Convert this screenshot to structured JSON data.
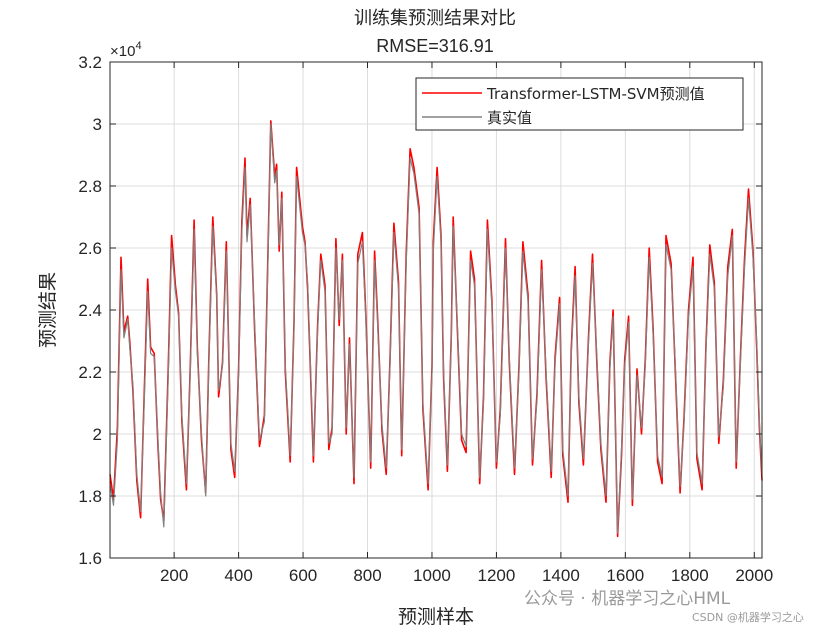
{
  "chart_data": {
    "type": "line",
    "title": "训练集预测结果对比",
    "subtitle": "RMSE=316.91",
    "xlabel": "预测样本",
    "ylabel": "预测结果",
    "y_exponent_label": "×10",
    "y_exponent_power": "4",
    "xlim": [
      1,
      2024
    ],
    "ylim": [
      16000,
      32000
    ],
    "x_ticks": [
      200,
      400,
      600,
      800,
      1000,
      1200,
      1400,
      1600,
      1800,
      2000
    ],
    "y_ticks": [
      16000,
      18000,
      20000,
      22000,
      24000,
      26000,
      28000,
      30000,
      32000
    ],
    "y_tick_labels": [
      "1.6",
      "1.8",
      "2",
      "2.2",
      "2.4",
      "2.6",
      "2.8",
      "3",
      "3.2"
    ],
    "grid": true,
    "legend_position": "top-right",
    "series": [
      {
        "name": "Transformer-LSTM-SVM预测值",
        "color": "#ff0000",
        "x": [
          1,
          12,
          24,
          35,
          44,
          56,
          62,
          72,
          84,
          96,
          108,
          118,
          127,
          138,
          150,
          158,
          168,
          182,
          192,
          204,
          214,
          224,
          238,
          250,
          262,
          272,
          285,
          298,
          308,
          320,
          332,
          338,
          350,
          362,
          376,
          388,
          400,
          410,
          420,
          426,
          436,
          450,
          465,
          480,
          492,
          500,
          512,
          518,
          526,
          534,
          545,
          560,
          572,
          580,
          598,
          606,
          614,
          622,
          632,
          645,
          655,
          668,
          680,
          690,
          702,
          712,
          722,
          734,
          744,
          758,
          770,
          784,
          795,
          810,
          822,
          832,
          845,
          858,
          870,
          882,
          896,
          906,
          920,
          932,
          944,
          960,
          972,
          988,
          1000,
          1004,
          1016,
          1028,
          1036,
          1048,
          1060,
          1066,
          1080,
          1092,
          1106,
          1120,
          1132,
          1148,
          1160,
          1172,
          1186,
          1200,
          1212,
          1228,
          1240,
          1256,
          1270,
          1282,
          1298,
          1312,
          1326,
          1340,
          1354,
          1370,
          1382,
          1396,
          1406,
          1422,
          1432,
          1444,
          1456,
          1470,
          1486,
          1498,
          1512,
          1524,
          1540,
          1552,
          1562,
          1576,
          1588,
          1598,
          1610,
          1622,
          1636,
          1650,
          1662,
          1674,
          1686,
          1700,
          1714,
          1726,
          1742,
          1756,
          1770,
          1782,
          1796,
          1810,
          1822,
          1838,
          1850,
          1862,
          1876,
          1890,
          1904,
          1918,
          1932,
          1944,
          1958,
          1970,
          1982,
          1996,
          2008,
          2016,
          2024
        ],
        "y": [
          18700,
          17900,
          20200,
          25700,
          23300,
          23800,
          23000,
          21400,
          18500,
          17300,
          21600,
          25000,
          22800,
          22600,
          19600,
          17900,
          17200,
          22200,
          26400,
          24800,
          23900,
          20400,
          18200,
          22200,
          26900,
          22800,
          19800,
          18100,
          22500,
          27000,
          24500,
          21200,
          22300,
          26200,
          19500,
          18600,
          22100,
          26800,
          28900,
          26400,
          27600,
          23300,
          19600,
          20600,
          26200,
          30100,
          28300,
          28700,
          25900,
          27800,
          22000,
          19100,
          23600,
          28600,
          26700,
          26200,
          24700,
          22400,
          19100,
          23500,
          25800,
          24800,
          19500,
          20200,
          26300,
          23500,
          25800,
          20000,
          23100,
          18400,
          25800,
          26500,
          23800,
          18900,
          25900,
          23600,
          20100,
          18700,
          22500,
          26800,
          24900,
          19300,
          25800,
          29200,
          28600,
          27300,
          20800,
          18200,
          22200,
          26200,
          28600,
          26400,
          21800,
          18800,
          23200,
          27000,
          23000,
          19800,
          19400,
          25900,
          25000,
          18400,
          21200,
          26900,
          24300,
          18900,
          20800,
          26300,
          22300,
          18700,
          22200,
          26200,
          24500,
          19000,
          21300,
          25600,
          21800,
          18600,
          22500,
          24400,
          19300,
          17800,
          22700,
          25400,
          21000,
          19000,
          23200,
          25800,
          22200,
          19500,
          17800,
          22300,
          24000,
          16700,
          19300,
          22400,
          23800,
          17700,
          22100,
          20000,
          22400,
          26000,
          23400,
          19100,
          18400,
          26400,
          25500,
          21800,
          18100,
          20500,
          24000,
          25700,
          19200,
          18200,
          22800,
          26100,
          24900,
          19700,
          21700,
          25400,
          26600,
          18900,
          22700,
          25700,
          27900,
          25900,
          22700,
          20200,
          18500
        ]
      },
      {
        "name": "真实值",
        "color": "#808080",
        "x": [
          1,
          12,
          24,
          35,
          44,
          56,
          62,
          72,
          84,
          96,
          108,
          118,
          127,
          138,
          150,
          158,
          168,
          182,
          192,
          204,
          214,
          224,
          238,
          250,
          262,
          272,
          285,
          298,
          308,
          320,
          332,
          338,
          350,
          362,
          376,
          388,
          400,
          410,
          420,
          426,
          436,
          450,
          465,
          480,
          492,
          500,
          512,
          518,
          526,
          534,
          545,
          560,
          572,
          580,
          598,
          606,
          614,
          622,
          632,
          645,
          655,
          668,
          680,
          690,
          702,
          712,
          722,
          734,
          744,
          758,
          770,
          784,
          795,
          810,
          822,
          832,
          845,
          858,
          870,
          882,
          896,
          906,
          920,
          932,
          944,
          960,
          972,
          988,
          1000,
          1004,
          1016,
          1028,
          1036,
          1048,
          1060,
          1066,
          1080,
          1092,
          1106,
          1120,
          1132,
          1148,
          1160,
          1172,
          1186,
          1200,
          1212,
          1228,
          1240,
          1256,
          1270,
          1282,
          1298,
          1312,
          1326,
          1340,
          1354,
          1370,
          1382,
          1396,
          1406,
          1422,
          1432,
          1444,
          1456,
          1470,
          1486,
          1498,
          1512,
          1524,
          1540,
          1552,
          1562,
          1576,
          1588,
          1598,
          1610,
          1622,
          1636,
          1650,
          1662,
          1674,
          1686,
          1700,
          1714,
          1726,
          1742,
          1756,
          1770,
          1782,
          1796,
          1810,
          1822,
          1838,
          1850,
          1862,
          1876,
          1890,
          1904,
          1918,
          1932,
          1944,
          1958,
          1970,
          1982,
          1996,
          2008,
          2016,
          2024
        ],
        "y": [
          18400,
          17700,
          19800,
          25300,
          23100,
          23700,
          22800,
          21600,
          18700,
          17500,
          21300,
          24600,
          22600,
          22500,
          19800,
          18100,
          17000,
          21900,
          26000,
          24600,
          23800,
          20600,
          18400,
          22000,
          26600,
          22600,
          20000,
          18000,
          22300,
          26700,
          24400,
          21400,
          22200,
          25900,
          19700,
          18800,
          21900,
          26500,
          28600,
          26200,
          27400,
          23500,
          19800,
          20400,
          25900,
          30000,
          28100,
          28500,
          26100,
          27600,
          22200,
          19300,
          23400,
          28300,
          26500,
          26100,
          24900,
          22600,
          19300,
          23300,
          25600,
          24600,
          19700,
          20000,
          26000,
          23700,
          25600,
          20200,
          22900,
          18600,
          25500,
          26200,
          23600,
          19100,
          25600,
          23400,
          20300,
          18900,
          22300,
          26500,
          24700,
          19500,
          25500,
          28900,
          28400,
          27100,
          21000,
          18400,
          22000,
          25900,
          28300,
          26200,
          22000,
          19000,
          23000,
          26700,
          23200,
          20000,
          19600,
          25600,
          24800,
          18600,
          21000,
          26600,
          24100,
          19100,
          20600,
          26000,
          22500,
          18900,
          22000,
          25900,
          24300,
          19200,
          21100,
          25300,
          22000,
          18800,
          22300,
          24200,
          19500,
          18000,
          22500,
          25100,
          21200,
          19200,
          23000,
          25500,
          22400,
          19700,
          18000,
          22100,
          23800,
          16800,
          19500,
          22200,
          23600,
          17900,
          21900,
          20200,
          22200,
          25700,
          23200,
          19300,
          18600,
          26100,
          25300,
          22000,
          18300,
          20300,
          23800,
          25400,
          19400,
          18400,
          22600,
          25800,
          24700,
          19900,
          21500,
          25100,
          26400,
          19100,
          22500,
          25400,
          27600,
          25700,
          22900,
          20400,
          18700
        ]
      }
    ]
  },
  "watermark": {
    "line1": "公众号 · 机器学习之心HML",
    "line2": "CSDN @机器学习之心"
  }
}
